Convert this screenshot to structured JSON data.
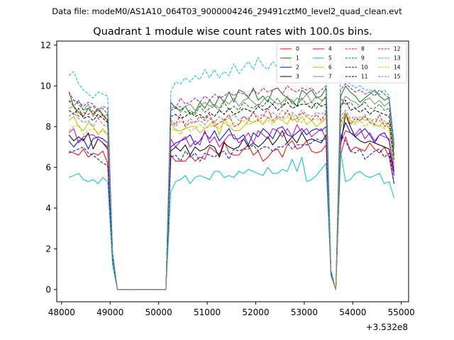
{
  "header": {
    "file_label": "Data file: modeM0/AS1A10_064T03_9000004246_29491cztM0_level2_quad_clean.evt"
  },
  "chart_data": {
    "type": "line",
    "title": "Quadrant 1 module wise count rates with 100.0s bins.",
    "xlabel": "",
    "ylabel": "",
    "x_offset_label": "+3.532e8",
    "xlim": [
      47900,
      55150
    ],
    "ylim": [
      -0.6,
      12.2
    ],
    "x_ticks": [
      48000,
      49000,
      50000,
      51000,
      52000,
      53000,
      54000,
      55000
    ],
    "y_ticks": [
      0,
      2,
      4,
      6,
      8,
      10,
      12
    ],
    "x": [
      48150,
      48250,
      48350,
      48450,
      48550,
      48650,
      48750,
      48850,
      48950,
      49050,
      49150,
      49250,
      49350,
      49450,
      49550,
      49650,
      49750,
      49850,
      49950,
      50050,
      50150,
      50250,
      50350,
      50450,
      50550,
      50650,
      50750,
      50850,
      50950,
      51050,
      51150,
      51250,
      51350,
      51450,
      51550,
      51650,
      51750,
      51850,
      51950,
      52050,
      52150,
      52250,
      52350,
      52450,
      52550,
      52650,
      52750,
      52850,
      52950,
      53050,
      53150,
      53250,
      53350,
      53450,
      53550,
      53650,
      53750,
      53850,
      53950,
      54050,
      54150,
      54250,
      54350,
      54450,
      54550,
      54650,
      54750,
      54850
    ],
    "series": [
      {
        "name": "0",
        "color": "#ff0000",
        "dash": "solid",
        "values": [
          6.8,
          6.7,
          6.6,
          6.9,
          6.5,
          6.7,
          6.6,
          6.8,
          6.2,
          1.5,
          0,
          0,
          0,
          0,
          0,
          0,
          0,
          0,
          0,
          0,
          0,
          6.6,
          6.3,
          6.3,
          6.3,
          6.6,
          6.3,
          6.5,
          6.4,
          7.0,
          6.8,
          6.6,
          7.3,
          6.7,
          6.6,
          6.6,
          6.9,
          7.1,
          6.6,
          6.8,
          6.3,
          6.5,
          6.8,
          6.9,
          6.5,
          7.1,
          7.3,
          6.9,
          7.0,
          7.3,
          6.8,
          6.7,
          6.8,
          7.1,
          0.8,
          0,
          6.6,
          7.5,
          6.8,
          7.0,
          6.9,
          6.8,
          7.2,
          6.9,
          6.7,
          7.0,
          6.5,
          5.2
        ]
      },
      {
        "name": "1",
        "color": "#008000",
        "dash": "solid",
        "values": [
          9.7,
          9.0,
          8.7,
          8.5,
          8.9,
          8.6,
          8.9,
          8.6,
          8.3,
          1.7,
          0,
          0,
          0,
          0,
          0,
          0,
          0,
          0,
          0,
          0,
          0,
          9.2,
          8.9,
          8.8,
          9.0,
          8.6,
          8.7,
          9.2,
          8.9,
          9.3,
          9.0,
          9.5,
          9.2,
          9.7,
          9.2,
          9.8,
          9.7,
          9.4,
          9.9,
          9.3,
          9.5,
          9.2,
          9.8,
          9.9,
          9.6,
          9.4,
          9.3,
          9.0,
          9.8,
          9.6,
          9.8,
          9.4,
          9.5,
          9.9,
          0.9,
          0,
          9.5,
          10.0,
          9.7,
          9.5,
          9.2,
          9.4,
          9.6,
          9.8,
          9.5,
          9.3,
          9.4,
          7.0
        ]
      },
      {
        "name": "2",
        "color": "#0000ff",
        "dash": "solid",
        "values": [
          7.3,
          7.0,
          7.3,
          7.4,
          6.9,
          7.4,
          7.5,
          7.4,
          7.2,
          1.6,
          0,
          0,
          0,
          0,
          0,
          0,
          0,
          0,
          0,
          0,
          0,
          7.0,
          7.2,
          7.3,
          7.4,
          7.6,
          7.1,
          7.3,
          7.7,
          7.4,
          7.8,
          7.3,
          7.6,
          7.9,
          7.4,
          7.4,
          7.6,
          7.1,
          7.7,
          7.5,
          7.9,
          7.7,
          7.4,
          7.9,
          8.0,
          7.6,
          7.5,
          7.7,
          7.9,
          7.6,
          7.8,
          7.9,
          7.8,
          8.0,
          0.9,
          0,
          7.4,
          8.2,
          7.7,
          7.5,
          7.7,
          7.9,
          7.6,
          7.2,
          7.6,
          7.7,
          7.3,
          5.8
        ]
      },
      {
        "name": "3",
        "color": "#000000",
        "dash": "solid",
        "values": [
          7.6,
          7.3,
          7.5,
          7.3,
          7.7,
          6.9,
          7.4,
          7.2,
          6.9,
          1.6,
          0,
          0,
          0,
          0,
          0,
          0,
          0,
          0,
          0,
          0,
          0,
          6.8,
          7.0,
          6.8,
          7.1,
          6.6,
          7.0,
          6.8,
          6.9,
          7.1,
          7.0,
          6.5,
          7.2,
          7.0,
          6.9,
          7.0,
          7.4,
          7.0,
          7.2,
          7.0,
          7.2,
          7.5,
          7.1,
          7.4,
          7.8,
          7.2,
          7.5,
          7.2,
          7.7,
          7.3,
          7.4,
          7.3,
          7.2,
          7.6,
          0.8,
          0,
          7.1,
          8.6,
          8.0,
          7.5,
          7.3,
          7.2,
          7.3,
          7.2,
          7.1,
          7.0,
          6.9,
          5.6
        ]
      },
      {
        "name": "4",
        "color": "#bf00bf",
        "dash": "solid",
        "values": [
          7.7,
          7.9,
          7.2,
          7.5,
          7.6,
          7.6,
          7.4,
          7.2,
          7.0,
          1.6,
          0,
          0,
          0,
          0,
          0,
          0,
          0,
          0,
          0,
          0,
          0,
          7.4,
          7.0,
          7.3,
          7.5,
          7.0,
          7.3,
          7.1,
          7.8,
          7.2,
          7.5,
          7.0,
          7.3,
          7.6,
          7.6,
          7.2,
          7.4,
          7.7,
          7.2,
          7.8,
          7.6,
          7.4,
          7.9,
          7.8,
          7.5,
          7.9,
          7.5,
          8.1,
          7.7,
          7.9,
          7.5,
          7.7,
          7.9,
          7.4,
          0.8,
          0,
          7.2,
          7.8,
          7.7,
          7.6,
          7.9,
          7.4,
          7.7,
          7.3,
          7.6,
          7.5,
          7.4,
          5.6
        ]
      },
      {
        "name": "5",
        "color": "#00bfbf",
        "dash": "solid",
        "values": [
          5.5,
          5.6,
          5.7,
          5.4,
          5.3,
          5.4,
          5.2,
          5.5,
          5.3,
          1.2,
          0,
          0,
          0,
          0,
          0,
          0,
          0,
          0,
          0,
          0,
          0,
          4.8,
          5.3,
          5.4,
          5.6,
          5.2,
          5.5,
          5.6,
          5.5,
          5.4,
          5.8,
          5.8,
          5.5,
          5.6,
          5.5,
          5.8,
          5.7,
          5.9,
          5.8,
          5.7,
          5.6,
          6.0,
          5.7,
          5.7,
          5.9,
          5.8,
          6.4,
          5.8,
          6.5,
          5.3,
          5.4,
          5.6,
          5.9,
          6.2,
          0.7,
          0,
          6.8,
          5.3,
          5.4,
          5.7,
          5.8,
          5.6,
          5.5,
          5.6,
          5.7,
          5.2,
          5.3,
          4.5
        ]
      },
      {
        "name": "6",
        "color": "#bfbf00",
        "dash": "solid",
        "values": [
          8.3,
          8.5,
          8.0,
          7.8,
          8.2,
          8.0,
          7.6,
          7.9,
          7.6,
          1.7,
          0,
          0,
          0,
          0,
          0,
          0,
          0,
          0,
          0,
          0,
          0,
          8.2,
          7.8,
          7.8,
          7.9,
          8.0,
          8.0,
          7.7,
          7.9,
          8.1,
          8.3,
          7.6,
          8.4,
          8.0,
          7.8,
          7.8,
          8.0,
          8.3,
          8.2,
          8.3,
          8.1,
          8.5,
          8.2,
          8.4,
          8.3,
          8.1,
          8.6,
          8.2,
          8.5,
          8.1,
          8.3,
          8.0,
          8.2,
          8.4,
          0.9,
          0,
          7.9,
          8.6,
          8.3,
          8.2,
          8.5,
          8.3,
          8.4,
          8.1,
          8.0,
          8.3,
          7.9,
          6.0
        ]
      },
      {
        "name": "7",
        "color": "#808080",
        "dash": "solid",
        "values": [
          8.9,
          9.0,
          9.3,
          8.8,
          9.1,
          8.5,
          8.9,
          8.5,
          8.6,
          1.8,
          0,
          0,
          0,
          0,
          0,
          0,
          0,
          0,
          0,
          0,
          0,
          8.9,
          9.0,
          8.7,
          9.0,
          9.1,
          8.8,
          9.0,
          9.2,
          9.0,
          9.1,
          8.9,
          9.3,
          9.1,
          9.4,
          9.0,
          9.3,
          9.4,
          9.2,
          9.0,
          9.3,
          9.5,
          9.3,
          9.1,
          9.2,
          9.5,
          9.1,
          9.4,
          9.3,
          9.6,
          9.2,
          9.5,
          9.3,
          9.4,
          0.9,
          0,
          9.0,
          9.5,
          9.3,
          9.2,
          9.0,
          9.3,
          9.4,
          9.1,
          9.3,
          9.0,
          9.2,
          6.9
        ]
      },
      {
        "name": "8",
        "color": "#ff0000",
        "dash": "dashed",
        "values": [
          9.3,
          9.0,
          8.5,
          8.7,
          8.6,
          8.8,
          8.4,
          8.6,
          8.2,
          1.7,
          0,
          0,
          0,
          0,
          0,
          0,
          0,
          0,
          0,
          0,
          0,
          8.3,
          8.1,
          8.6,
          8.0,
          8.2,
          8.2,
          8.5,
          8.3,
          8.6,
          8.0,
          8.2,
          8.3,
          8.6,
          8.0,
          8.1,
          8.5,
          8.3,
          8.7,
          8.3,
          8.5,
          8.9,
          8.3,
          8.5,
          8.4,
          8.8,
          8.3,
          8.4,
          8.7,
          8.5,
          8.3,
          8.6,
          8.3,
          8.7,
          0.9,
          0,
          8.2,
          8.7,
          8.1,
          8.4,
          8.3,
          8.5,
          8.2,
          8.1,
          8.6,
          8.0,
          8.2,
          6.0
        ]
      },
      {
        "name": "9",
        "color": "#008000",
        "dash": "dashed",
        "values": [
          9.2,
          9.3,
          9.1,
          8.8,
          8.9,
          9.0,
          8.7,
          8.9,
          8.6,
          1.7,
          0,
          0,
          0,
          0,
          0,
          0,
          0,
          0,
          0,
          0,
          0,
          8.8,
          8.9,
          9.0,
          8.7,
          8.8,
          8.6,
          9.0,
          8.7,
          8.9,
          9.0,
          8.8,
          9.2,
          8.8,
          9.0,
          8.8,
          9.2,
          9.0,
          8.9,
          9.1,
          9.0,
          9.3,
          9.1,
          9.4,
          9.0,
          9.4,
          9.2,
          9.0,
          9.4,
          9.1,
          9.2,
          8.9,
          9.2,
          9.5,
          0.9,
          0,
          9.4,
          9.1,
          9.2,
          8.9,
          9.0,
          9.2,
          8.9,
          8.9,
          9.1,
          8.8,
          8.9,
          6.6
        ]
      },
      {
        "name": "10",
        "color": "#0000ff",
        "dash": "dashed",
        "values": [
          6.7,
          6.8,
          6.9,
          7.0,
          6.7,
          6.6,
          6.4,
          6.2,
          6.1,
          1.5,
          0,
          0,
          0,
          0,
          0,
          0,
          0,
          0,
          0,
          0,
          0,
          6.5,
          6.6,
          6.3,
          6.8,
          6.5,
          6.7,
          6.3,
          6.7,
          6.6,
          6.5,
          6.7,
          6.8,
          6.4,
          6.9,
          6.8,
          6.9,
          6.9,
          7.1,
          6.8,
          7.0,
          7.0,
          6.8,
          7.0,
          7.0,
          7.2,
          6.9,
          7.1,
          7.1,
          7.1,
          7.2,
          7.4,
          7.3,
          7.4,
          0.8,
          0,
          7.6,
          7.3,
          6.8,
          6.7,
          6.9,
          6.4,
          6.6,
          6.8,
          6.9,
          6.5,
          6.7,
          5.2
        ]
      },
      {
        "name": "11",
        "color": "#000000",
        "dash": "dashed",
        "values": [
          8.8,
          8.6,
          8.9,
          8.4,
          8.5,
          8.3,
          8.6,
          8.4,
          8.2,
          1.7,
          0,
          0,
          0,
          0,
          0,
          0,
          0,
          0,
          0,
          0,
          0,
          8.5,
          8.6,
          8.4,
          8.5,
          8.7,
          8.5,
          8.6,
          8.4,
          8.7,
          8.5,
          8.8,
          8.6,
          8.9,
          8.6,
          8.7,
          8.9,
          8.8,
          8.7,
          9.0,
          8.8,
          8.9,
          9.1,
          8.8,
          9.0,
          9.2,
          8.9,
          9.0,
          9.1,
          9.1,
          8.9,
          9.2,
          9.0,
          9.1,
          0.9,
          0,
          9.0,
          9.3,
          8.8,
          8.9,
          8.7,
          8.9,
          8.6,
          8.8,
          8.7,
          8.6,
          8.5,
          6.4
        ]
      },
      {
        "name": "12",
        "color": "#bf00bf",
        "dash": "dashed",
        "values": [
          9.7,
          9.3,
          9.2,
          9.0,
          9.2,
          9.1,
          8.8,
          9.0,
          8.9,
          1.8,
          0,
          0,
          0,
          0,
          0,
          0,
          0,
          0,
          0,
          0,
          0,
          9.2,
          8.9,
          9.4,
          9.1,
          9.2,
          9.4,
          9.2,
          9.5,
          9.3,
          9.6,
          9.4,
          9.5,
          9.7,
          9.5,
          9.7,
          9.6,
          9.5,
          9.8,
          9.6,
          9.9,
          9.7,
          9.8,
          9.9,
          9.6,
          10.0,
          9.8,
          9.7,
          9.9,
          9.8,
          9.9,
          9.6,
          9.8,
          10.0,
          0.9,
          0,
          9.8,
          10.1,
          9.9,
          9.7,
          9.8,
          9.6,
          9.7,
          9.5,
          9.8,
          9.6,
          9.4,
          7.2
        ]
      },
      {
        "name": "13",
        "color": "#00bfbf",
        "dash": "dashed",
        "values": [
          10.5,
          10.7,
          10.1,
          9.8,
          9.6,
          9.4,
          9.7,
          9.6,
          9.5,
          1.9,
          0,
          0,
          0,
          0,
          0,
          0,
          0,
          0,
          0,
          0,
          0,
          9.7,
          10.2,
          10.1,
          10.4,
          10.2,
          10.5,
          10.3,
          10.8,
          10.4,
          10.8,
          10.4,
          10.7,
          10.5,
          11.1,
          10.6,
          10.9,
          11.2,
          10.8,
          11.4,
          11.0,
          10.8,
          11.2,
          10.9,
          11.0,
          11.5,
          10.9,
          11.1,
          10.8,
          11.2,
          11.0,
          10.9,
          11.1,
          10.7,
          1.0,
          0,
          10.5,
          10.3,
          10.1,
          9.9,
          10.0,
          9.8,
          9.8,
          9.7,
          9.6,
          9.8,
          9.5,
          7.1
        ]
      },
      {
        "name": "14",
        "color": "#bfbf00",
        "dash": "dashed",
        "values": [
          7.8,
          8.0,
          8.1,
          7.6,
          7.8,
          7.9,
          7.7,
          7.8,
          7.6,
          1.6,
          0,
          0,
          0,
          0,
          0,
          0,
          0,
          0,
          0,
          0,
          0,
          7.8,
          7.9,
          7.6,
          8.0,
          7.8,
          7.9,
          8.1,
          7.9,
          8.0,
          8.1,
          7.9,
          8.2,
          8.0,
          8.2,
          8.1,
          8.3,
          8.1,
          8.2,
          8.4,
          8.2,
          8.3,
          8.1,
          8.4,
          8.3,
          8.5,
          8.3,
          8.4,
          8.2,
          8.5,
          8.3,
          8.4,
          8.2,
          8.5,
          0.9,
          0,
          8.3,
          8.6,
          8.2,
          8.1,
          8.3,
          8.0,
          8.2,
          8.0,
          8.1,
          7.9,
          8.0,
          6.0
        ]
      },
      {
        "name": "15",
        "color": "#808080",
        "dash": "dashed",
        "values": [
          8.5,
          8.7,
          8.4,
          8.2,
          8.3,
          8.0,
          8.4,
          8.1,
          8.0,
          1.7,
          0,
          0,
          0,
          0,
          0,
          0,
          0,
          0,
          0,
          0,
          0,
          8.2,
          8.0,
          8.3,
          8.1,
          8.4,
          8.2,
          8.3,
          8.1,
          8.4,
          8.2,
          8.5,
          8.3,
          8.4,
          8.6,
          8.3,
          8.5,
          8.4,
          8.7,
          8.5,
          8.6,
          8.4,
          8.7,
          8.5,
          8.8,
          8.6,
          8.7,
          8.5,
          8.8,
          8.6,
          8.5,
          8.7,
          8.6,
          8.8,
          0.9,
          0,
          8.5,
          8.8,
          8.4,
          8.5,
          8.3,
          8.6,
          8.2,
          8.4,
          8.3,
          8.1,
          8.2,
          6.1
        ]
      }
    ]
  }
}
